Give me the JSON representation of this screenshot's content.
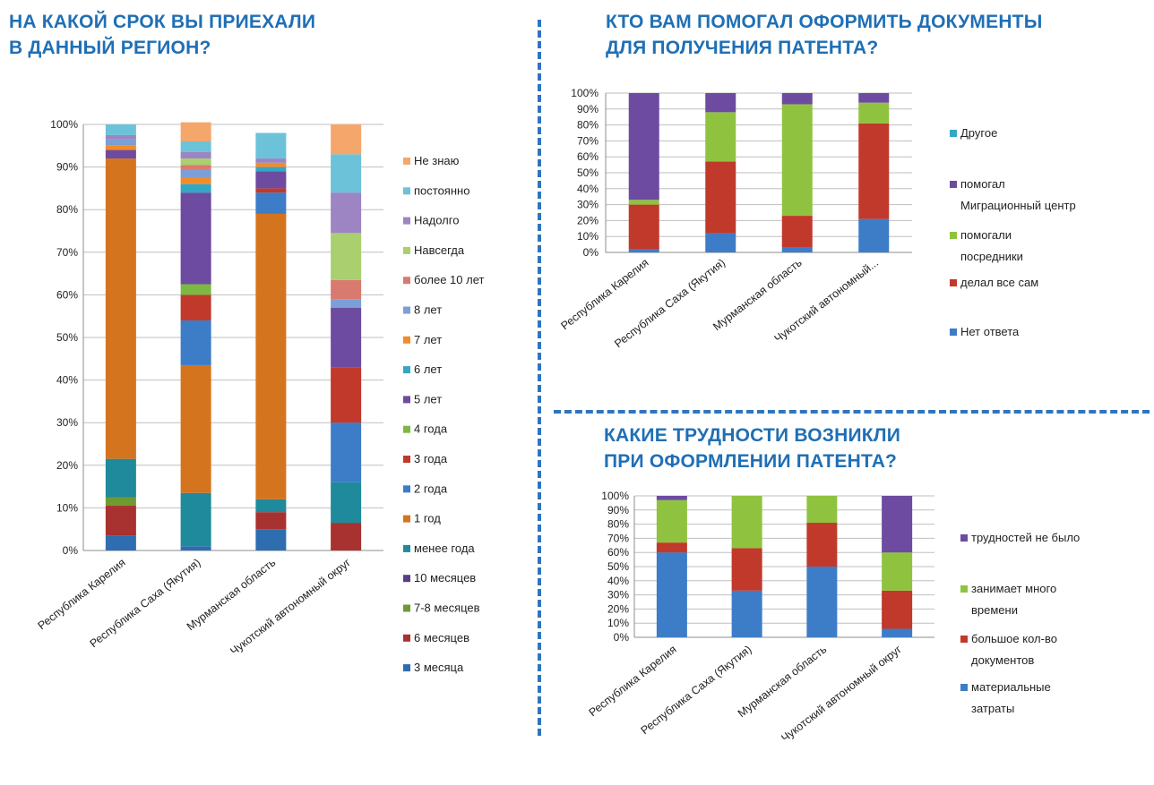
{
  "chart_data": [
    {
      "type": "bar",
      "stacked": true,
      "title": "НА КАКОЙ СРОК ВЫ ПРИЕХАЛИ\nВ ДАННЫЙ РЕГИОН?",
      "categories": [
        "Республика Карелия",
        "Республика Саха (Якутия)",
        "Мурманская область",
        "Чукотский автономный округ"
      ],
      "ylim": [
        0,
        100
      ],
      "yticks": [
        "0%",
        "10%",
        "20%",
        "30%",
        "40%",
        "50%",
        "60%",
        "70%",
        "80%",
        "90%",
        "100%"
      ],
      "grid": true,
      "legend_position": "right",
      "series": [
        {
          "name": "3 месяца",
          "color": "#2e6db0",
          "values": [
            3.5,
            1,
            5,
            0
          ]
        },
        {
          "name": "6 месяцев",
          "color": "#a8322f",
          "values": [
            7,
            0,
            4,
            6.5
          ]
        },
        {
          "name": "7-8 месяцев",
          "color": "#6f9a33",
          "values": [
            2,
            0,
            0,
            0
          ]
        },
        {
          "name": "10 месяцев",
          "color": "#5a3e86",
          "values": [
            0,
            0,
            0,
            0
          ]
        },
        {
          "name": "менее года",
          "color": "#1f8a9c",
          "values": [
            9,
            12.5,
            3,
            9.5
          ]
        },
        {
          "name": "1 год",
          "color": "#d4741e",
          "values": [
            70.5,
            30,
            67,
            0
          ]
        },
        {
          "name": "2 года",
          "color": "#3d7cc7",
          "values": [
            0,
            10.5,
            5,
            14
          ]
        },
        {
          "name": "3 года",
          "color": "#c0392b",
          "values": [
            0,
            6,
            1,
            13
          ]
        },
        {
          "name": "4 года",
          "color": "#7db843",
          "values": [
            0,
            2.5,
            0,
            0
          ]
        },
        {
          "name": "5 лет",
          "color": "#6d4ba0",
          "values": [
            2,
            21.5,
            4,
            14
          ]
        },
        {
          "name": "6 лет",
          "color": "#33a7c4",
          "values": [
            0,
            2,
            1,
            0
          ]
        },
        {
          "name": "7 лет",
          "color": "#f28c28",
          "values": [
            1,
            1.5,
            1,
            0
          ]
        },
        {
          "name": "8 лет",
          "color": "#7b9fd6",
          "values": [
            1.5,
            2,
            0,
            2
          ]
        },
        {
          "name": "более 10 лет",
          "color": "#d97a70",
          "values": [
            0,
            1,
            0,
            4.5
          ]
        },
        {
          "name": "Навсегда",
          "color": "#a9cf6e",
          "values": [
            0,
            1.5,
            0,
            11
          ]
        },
        {
          "name": "Надолго",
          "color": "#9d84c2",
          "values": [
            1,
            1.5,
            1,
            9.5
          ]
        },
        {
          "name": "постоянно",
          "color": "#6cc2d8",
          "values": [
            2.5,
            2.5,
            6,
            9
          ]
        },
        {
          "name": "Не знаю",
          "color": "#f5a66b",
          "values": [
            0,
            4.5,
            0,
            7
          ]
        }
      ]
    },
    {
      "type": "bar",
      "stacked": true,
      "title": "КТО ВАМ ПОМОГАЛ ОФОРМИТЬ ДОКУМЕНТЫ\nДЛЯ ПОЛУЧЕНИЯ ПАТЕНТА?",
      "categories": [
        "Республика Карелия",
        "Республика Саха (Якутия)",
        "Мурманская область",
        "Чукотский автономный..."
      ],
      "ylim": [
        0,
        100
      ],
      "yticks": [
        "0%",
        "10%",
        "20%",
        "30%",
        "40%",
        "50%",
        "60%",
        "70%",
        "80%",
        "90%",
        "100%"
      ],
      "grid": true,
      "legend_position": "right",
      "series": [
        {
          "name": "Нет ответа",
          "color": "#3d7cc7",
          "values": [
            2,
            12,
            3,
            21
          ]
        },
        {
          "name": "делал все сам",
          "color": "#c0392b",
          "values": [
            28,
            45,
            20,
            60
          ]
        },
        {
          "name": "помогали посредники",
          "color": "#8fc33f",
          "values": [
            3,
            31,
            70,
            13
          ]
        },
        {
          "name": "помогал Миграционный центр",
          "color": "#6d4ba0",
          "values": [
            67,
            12,
            7,
            6
          ]
        },
        {
          "name": "Другое",
          "color": "#33a7c4",
          "values": [
            0,
            0,
            0,
            0
          ]
        }
      ]
    },
    {
      "type": "bar",
      "stacked": true,
      "title": "КАКИЕ ТРУДНОСТИ ВОЗНИКЛИ\nПРИ ОФОРМЛЕНИИ ПАТЕНТА?",
      "categories": [
        "Республика Карелия",
        "Республика Саха (Якутия)",
        "Мурманская область",
        "Чукотский автономный округ"
      ],
      "ylim": [
        0,
        100
      ],
      "yticks": [
        "0%",
        "10%",
        "20%",
        "30%",
        "40%",
        "50%",
        "60%",
        "70%",
        "80%",
        "90%",
        "100%"
      ],
      "grid": true,
      "legend_position": "right",
      "series": [
        {
          "name": "материальные затраты",
          "color": "#3d7cc7",
          "values": [
            60,
            33,
            50,
            6
          ]
        },
        {
          "name": "большое кол-во документов",
          "color": "#c0392b",
          "values": [
            7,
            30,
            31,
            27
          ]
        },
        {
          "name": "занимает много времени",
          "color": "#8fc33f",
          "values": [
            30,
            37,
            19,
            27
          ]
        },
        {
          "name": "трудностей не было",
          "color": "#6d4ba0",
          "values": [
            3,
            0,
            0,
            40
          ]
        }
      ]
    }
  ]
}
